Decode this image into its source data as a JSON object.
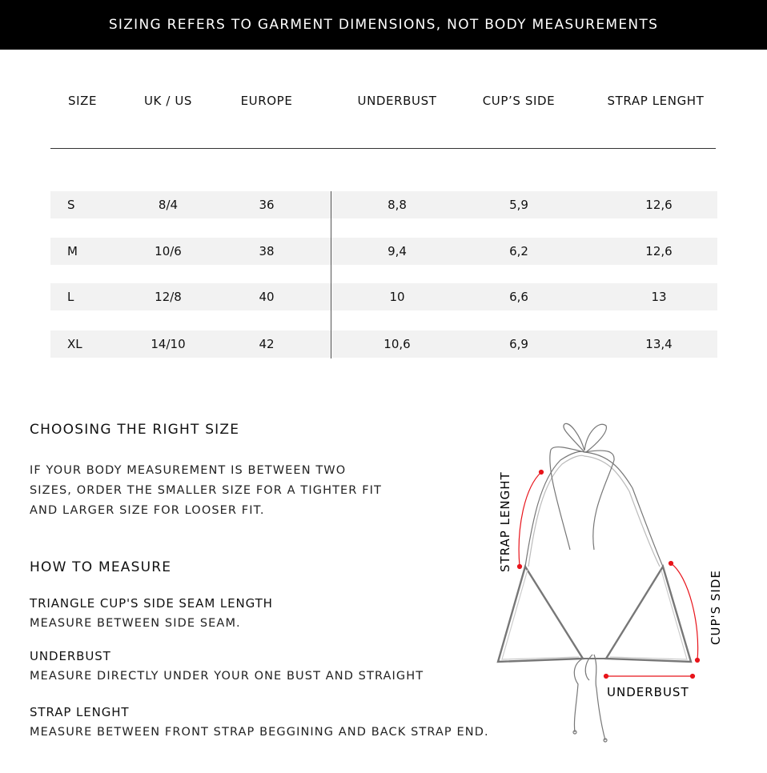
{
  "banner": "SIZING REFERS TO GARMENT DIMENSIONS, NOT BODY MEASUREMENTS",
  "table": {
    "headers": [
      "SIZE",
      "UK / US",
      "EUROPE",
      "UNDERBUST",
      "CUP’S SIDE",
      "STRAP LENGHT"
    ],
    "rows": [
      [
        "S",
        "8/4",
        "36",
        "8,8",
        "5,9",
        "12,6"
      ],
      [
        "M",
        "10/6",
        "38",
        "9,4",
        "6,2",
        "12,6"
      ],
      [
        "L",
        "12/8",
        "40",
        "10",
        "6,6",
        "13"
      ],
      [
        "XL",
        "14/10",
        "42",
        "10,6",
        "6,9",
        "13,4"
      ]
    ]
  },
  "choosing": {
    "title": "CHOOSING THE RIGHT SIZE",
    "lines": [
      "IF YOUR BODY MEASUREMENT IS BETWEEN TWO",
      "SIZES, ORDER THE SMALLER SIZE FOR A TIGHTER FIT",
      "AND LARGER SIZE FOR LOOSER FIT."
    ]
  },
  "measure": {
    "title": "HOW TO MEASURE",
    "items": [
      {
        "title": "TRIANGLE CUP'S SIDE SEAM LENGTH",
        "text": "MEASURE BETWEEN SIDE SEAM."
      },
      {
        "title": "UNDERBUST",
        "text": "MEASURE DIRECTLY UNDER YOUR ONE  BUST AND STRAIGHT"
      },
      {
        "title": "STRAP LENGHT",
        "text": "MEASURE BETWEEN FRONT STRAP BEGGINING AND BACK STRAP END."
      }
    ]
  },
  "diagram": {
    "labels": {
      "strap": "STRAP LENGHT",
      "cup": "CUP'S SIDE",
      "underbust": "UNDERBUST"
    },
    "accent": "#e8141b"
  }
}
